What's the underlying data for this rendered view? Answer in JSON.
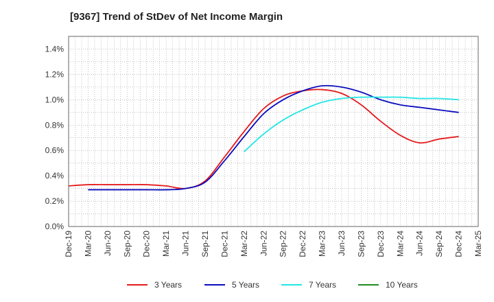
{
  "title": "[9367]  Trend of StDev of Net Income Margin",
  "chart_data": {
    "type": "line",
    "title": "[9367]  Trend of StDev of Net Income Margin",
    "xlabel": "",
    "ylabel": "",
    "x": [
      "Dec-19",
      "Mar-20",
      "Jun-20",
      "Sep-20",
      "Dec-20",
      "Mar-21",
      "Jun-21",
      "Sep-21",
      "Dec-21",
      "Mar-22",
      "Jun-22",
      "Sep-22",
      "Dec-22",
      "Mar-23",
      "Jun-23",
      "Sep-23",
      "Dec-23",
      "Mar-24",
      "Jun-24",
      "Sep-24",
      "Dec-24",
      "Mar-25"
    ],
    "y_ticks": [
      "0.0%",
      "0.2%",
      "0.4%",
      "0.6%",
      "0.8%",
      "1.0%",
      "1.2%",
      "1.4%"
    ],
    "ylim": [
      0,
      1.5
    ],
    "grid": true,
    "legend_position": "bottom",
    "series": [
      {
        "name": "3 Years",
        "color": "#e41a1c",
        "values": [
          0.32,
          0.33,
          0.33,
          0.33,
          0.33,
          0.32,
          0.3,
          0.36,
          0.55,
          0.75,
          0.93,
          1.03,
          1.07,
          1.08,
          1.05,
          0.96,
          0.83,
          0.72,
          0.66,
          0.69,
          0.71,
          null
        ]
      },
      {
        "name": "5 Years",
        "color": "#0b0bbf",
        "values": [
          null,
          0.29,
          0.29,
          0.29,
          0.29,
          0.29,
          0.3,
          0.35,
          0.52,
          0.71,
          0.89,
          1.0,
          1.07,
          1.11,
          1.1,
          1.06,
          1.0,
          0.96,
          0.94,
          0.92,
          0.9,
          null
        ]
      },
      {
        "name": "7 Years",
        "color": "#22e5e5",
        "values": [
          null,
          null,
          null,
          null,
          null,
          null,
          null,
          null,
          null,
          0.59,
          0.73,
          0.84,
          0.92,
          0.98,
          1.01,
          1.02,
          1.02,
          1.02,
          1.01,
          1.01,
          1.0,
          null
        ]
      },
      {
        "name": "10 Years",
        "color": "#1f8a1f",
        "values": [
          null,
          null,
          null,
          null,
          null,
          null,
          null,
          null,
          null,
          null,
          null,
          null,
          null,
          null,
          null,
          null,
          null,
          null,
          null,
          null,
          null,
          null
        ]
      }
    ]
  }
}
